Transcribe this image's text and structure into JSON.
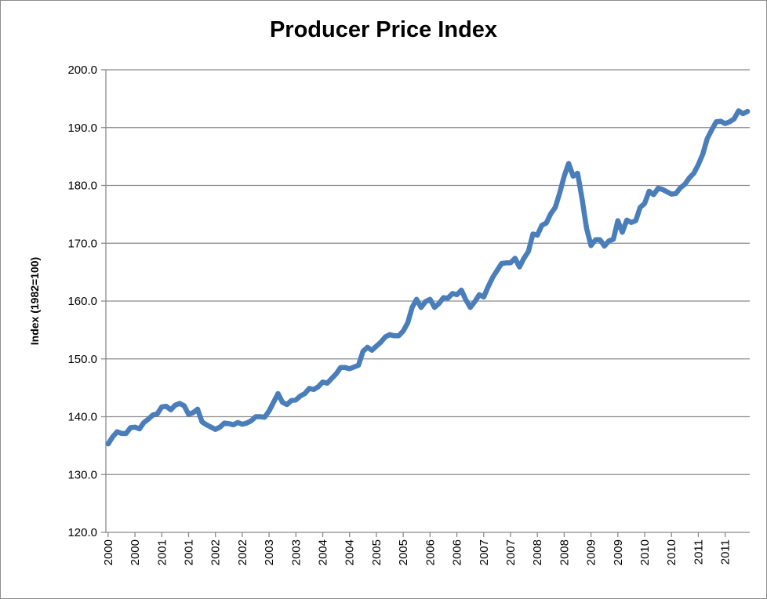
{
  "chart_data": {
    "type": "line",
    "title": "Producer Price Index",
    "xlabel": "",
    "ylabel": "Index (1982=100)",
    "ylim": [
      120,
      200
    ],
    "y_ticks": [
      "120.0",
      "130.0",
      "140.0",
      "150.0",
      "160.0",
      "170.0",
      "180.0",
      "190.0",
      "200.0"
    ],
    "x_tick_labels": [
      "2000",
      "2000",
      "2001",
      "2001",
      "2002",
      "2002",
      "2003",
      "2003",
      "2004",
      "2004",
      "2005",
      "2005",
      "2006",
      "2006",
      "2007",
      "2007",
      "2008",
      "2008",
      "2009",
      "2009",
      "2010",
      "2010",
      "2011",
      "2011"
    ],
    "x_start": "2000-01",
    "grid": "horizontal major gridlines",
    "legend": "none",
    "line_color": "#4a7ebb",
    "series": [
      {
        "values": [
          135.3,
          136.5,
          137.4,
          137.1,
          137.1,
          138.1,
          138.2,
          137.9,
          139.0,
          139.6,
          140.3,
          140.5,
          141.7,
          141.8,
          141.2,
          142.0,
          142.3,
          141.9,
          140.4,
          140.7,
          141.3,
          139.1,
          138.6,
          138.2,
          137.8,
          138.2,
          138.9,
          138.8,
          138.6,
          139.0,
          138.7,
          138.9,
          139.3,
          140.0,
          140.0,
          139.9,
          141.0,
          142.5,
          144.0,
          142.5,
          142.1,
          142.8,
          142.9,
          143.6,
          144.0,
          144.9,
          144.7,
          145.2,
          146.0,
          145.8,
          146.6,
          147.4,
          148.5,
          148.5,
          148.3,
          148.6,
          148.9,
          151.3,
          152.0,
          151.5,
          152.2,
          152.9,
          153.8,
          154.2,
          154.0,
          154.0,
          154.8,
          156.2,
          158.9,
          160.3,
          158.9,
          159.9,
          160.3,
          158.9,
          159.6,
          160.6,
          160.5,
          161.3,
          161.1,
          161.9,
          160.2,
          158.9,
          159.9,
          161.1,
          160.7,
          162.5,
          164.1,
          165.3,
          166.5,
          166.6,
          166.6,
          167.4,
          165.9,
          167.4,
          168.6,
          171.6,
          171.4,
          173.1,
          173.5,
          175.1,
          176.2,
          178.7,
          181.6,
          183.8,
          181.6,
          182.1,
          177.7,
          172.6,
          169.6,
          170.6,
          170.6,
          169.5,
          170.4,
          170.7,
          173.9,
          171.9,
          174.0,
          173.6,
          173.9,
          176.2,
          176.9,
          179.0,
          178.4,
          179.5,
          179.3,
          178.9,
          178.5,
          178.6,
          179.6,
          180.2,
          181.3,
          182.1,
          183.6,
          185.4,
          188.1,
          189.6,
          191.0,
          191.1,
          190.7,
          191.0,
          191.5,
          192.9,
          192.4,
          192.8
        ]
      }
    ]
  }
}
